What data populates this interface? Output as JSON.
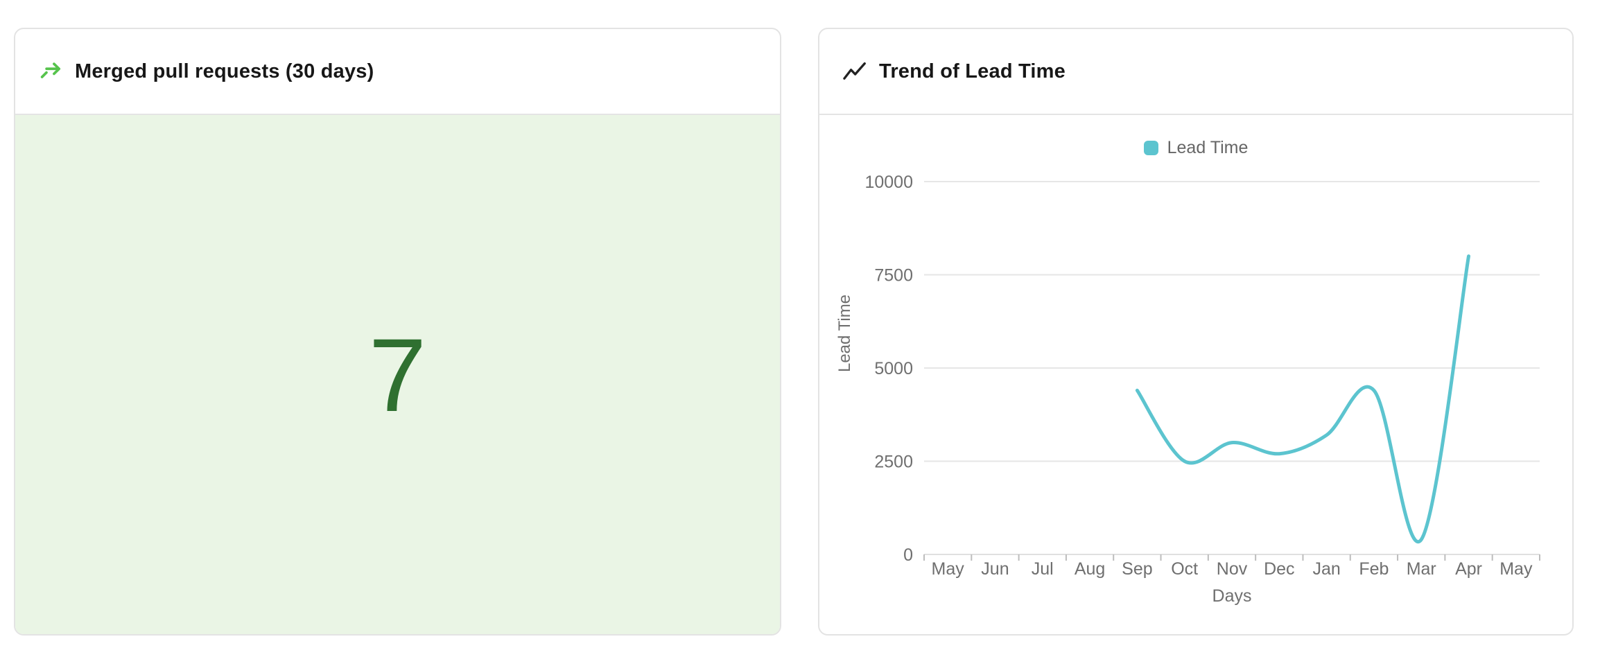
{
  "cards": {
    "merged_prs": {
      "title": "Merged pull requests (30 days)",
      "value": "7",
      "icon": "merge-icon"
    },
    "lead_time": {
      "title": "Trend of Lead Time",
      "icon": "trend-icon"
    }
  },
  "chart_data": {
    "type": "line",
    "title": "Trend of Lead Time",
    "smooth": true,
    "grid": true,
    "legend": [
      "Lead Time"
    ],
    "legend_position": "top",
    "xlabel": "Days",
    "ylabel": "Lead Time",
    "x_categories": [
      "May",
      "Jun",
      "Jul",
      "Aug",
      "Sep",
      "Oct",
      "Nov",
      "Dec",
      "Jan",
      "Feb",
      "Mar",
      "Apr",
      "May"
    ],
    "ylim": [
      0,
      10000
    ],
    "yticks": [
      0,
      2500,
      5000,
      7500,
      10000
    ],
    "series": [
      {
        "name": "Lead Time",
        "color": "#5cc4cf",
        "x": [
          "Sep",
          "Oct",
          "Nov",
          "Dec",
          "Jan",
          "Feb",
          "Mar",
          "Apr"
        ],
        "values": [
          4400,
          2500,
          3000,
          2700,
          3200,
          4400,
          400,
          8000
        ]
      }
    ]
  },
  "colors": {
    "accent_green": "#56c34c",
    "stat_green": "#2f7030",
    "stat_panel_bg": "#eaf5e5",
    "line_teal": "#5cc4cf",
    "grid_line": "#e6e6e6",
    "axis_line": "#e0e0e0",
    "axis_tick": "#bdbdbd",
    "axis_text": "#6f6f6f",
    "title_text": "#171717",
    "card_border": "#e3e3e3"
  }
}
